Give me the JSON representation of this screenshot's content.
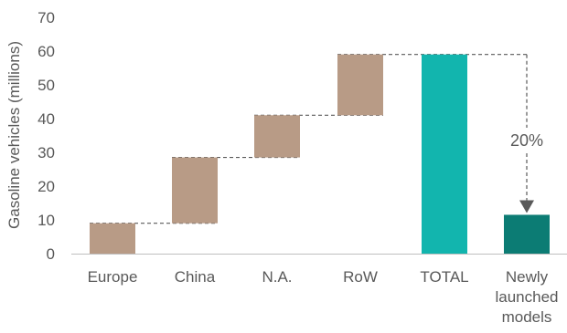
{
  "chart_data": {
    "type": "bar",
    "ylabel": "Gasoline vehicles (millions)",
    "ylim": [
      0,
      70
    ],
    "yticks": [
      0,
      10,
      20,
      30,
      40,
      50,
      60,
      70
    ],
    "grid": false,
    "categories": [
      "Europe",
      "China",
      "N.A.",
      "RoW",
      "TOTAL",
      "Newly launched models"
    ],
    "category_lines": [
      [
        "Europe"
      ],
      [
        "China"
      ],
      [
        "N.A."
      ],
      [
        "RoW"
      ],
      [
        "TOTAL"
      ],
      [
        "Newly",
        "launched",
        "models"
      ]
    ],
    "bars": [
      {
        "category": "Europe",
        "start": 0,
        "end": 9,
        "kind": "increment"
      },
      {
        "category": "China",
        "start": 9,
        "end": 28.5,
        "kind": "increment"
      },
      {
        "category": "N.A.",
        "start": 28.5,
        "end": 41,
        "kind": "increment"
      },
      {
        "category": "RoW",
        "start": 41,
        "end": 59,
        "kind": "increment"
      },
      {
        "category": "TOTAL",
        "start": 0,
        "end": 59,
        "kind": "total"
      },
      {
        "category": "Newly launched models",
        "start": 0,
        "end": 11.5,
        "kind": "subset"
      }
    ],
    "annotation": {
      "text": "20%",
      "from": "TOTAL",
      "to": "Newly launched models"
    },
    "colors": {
      "increment": "#b89b86",
      "total": "#12b5ae",
      "subset": "#0c7c74",
      "connector": "#595959",
      "axis": "#bfbfbf",
      "arrow": "#595959"
    }
  }
}
